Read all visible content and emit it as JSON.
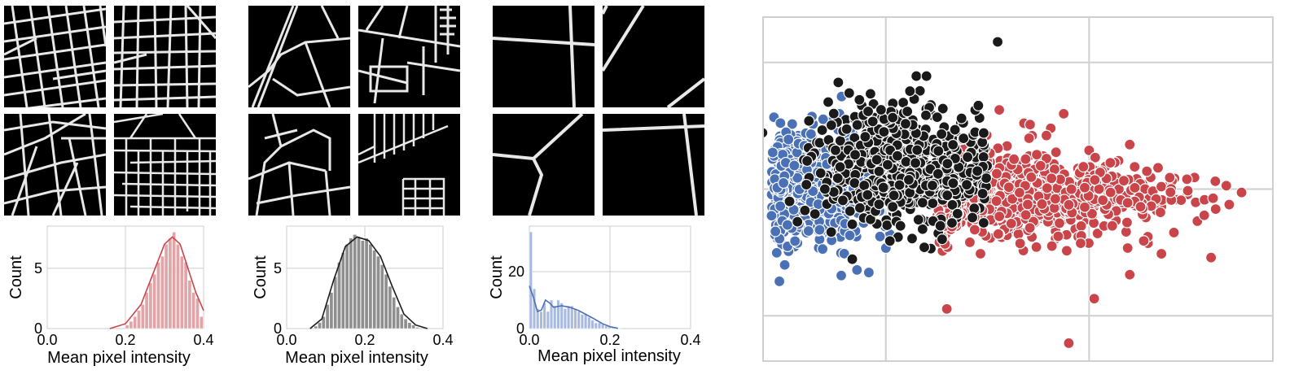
{
  "palette": {
    "red": "#c9454a",
    "red_fill": "#e2a5a7",
    "black": "#1a1a1a",
    "gray_fill": "#8f8f8f",
    "blue": "#4a70b6",
    "blue_fill": "#a9badf",
    "road": "#e8e8e8",
    "grid": "#cccccc"
  },
  "groups": [
    {
      "name": "dense-grid",
      "color_key": "red"
    },
    {
      "name": "medium",
      "color_key": "black"
    },
    {
      "name": "sparse",
      "color_key": "blue"
    }
  ],
  "chart_data": [
    {
      "type": "bar",
      "panel": "histogram-1",
      "xlabel": "Mean pixel intensity",
      "ylabel": "Count",
      "xlim": [
        0.0,
        0.4
      ],
      "ylim": [
        0,
        8.5
      ],
      "xticks": [
        "0.0",
        "0.2",
        "0.4"
      ],
      "yticks": [
        "0",
        "5"
      ],
      "grid": true,
      "bin_width": 0.01,
      "bin_starts": [
        0.2,
        0.21,
        0.22,
        0.23,
        0.24,
        0.25,
        0.26,
        0.27,
        0.28,
        0.29,
        0.3,
        0.31,
        0.32,
        0.33,
        0.34,
        0.35,
        0.36,
        0.37,
        0.38,
        0.39
      ],
      "values": [
        0.3,
        0.6,
        1.0,
        1.5,
        2.0,
        3.0,
        3.8,
        4.5,
        5.5,
        6.0,
        7.0,
        7.5,
        8.0,
        7.0,
        6.0,
        5.5,
        4.0,
        3.0,
        2.5,
        1.0
      ],
      "kde_x": [
        0.16,
        0.2,
        0.24,
        0.27,
        0.3,
        0.32,
        0.34,
        0.36,
        0.38,
        0.4
      ],
      "kde_y": [
        0.0,
        0.4,
        2.0,
        4.5,
        7.0,
        7.6,
        7.0,
        5.0,
        3.0,
        1.5
      ]
    },
    {
      "type": "bar",
      "panel": "histogram-2",
      "xlabel": "Mean pixel intensity",
      "ylabel": "Count",
      "xlim": [
        0.0,
        0.4
      ],
      "ylim": [
        0,
        8.5
      ],
      "xticks": [
        "0.0",
        "0.2",
        "0.4"
      ],
      "yticks": [
        "0",
        "5"
      ],
      "grid": true,
      "bin_width": 0.01,
      "bin_starts": [
        0.07,
        0.08,
        0.09,
        0.1,
        0.11,
        0.12,
        0.13,
        0.14,
        0.15,
        0.16,
        0.17,
        0.18,
        0.19,
        0.2,
        0.21,
        0.22,
        0.23,
        0.24,
        0.25,
        0.26,
        0.27,
        0.28,
        0.29,
        0.3,
        0.31,
        0.32,
        0.33
      ],
      "values": [
        0.2,
        0.5,
        1.0,
        2.0,
        3.0,
        4.3,
        5.5,
        6.3,
        7.0,
        7.5,
        7.8,
        7.6,
        7.3,
        7.5,
        7.0,
        6.5,
        6.0,
        5.3,
        4.5,
        3.5,
        2.6,
        1.8,
        1.2,
        0.8,
        0.5,
        0.3,
        0.1
      ],
      "kde_x": [
        0.06,
        0.09,
        0.12,
        0.15,
        0.18,
        0.21,
        0.24,
        0.27,
        0.3,
        0.33,
        0.36
      ],
      "kde_y": [
        0.0,
        0.8,
        4.0,
        6.8,
        7.6,
        7.3,
        6.0,
        3.5,
        1.2,
        0.3,
        0.0
      ]
    },
    {
      "type": "bar",
      "panel": "histogram-3",
      "xlabel": "Mean pixel intensity",
      "ylabel": "Count",
      "xlim": [
        0.0,
        0.4
      ],
      "ylim": [
        0,
        36
      ],
      "xticks": [
        "0.0",
        "0.2",
        "0.4"
      ],
      "yticks": [
        "0",
        "20"
      ],
      "grid": true,
      "bin_width": 0.0085,
      "bin_starts": [
        0.0,
        0.0085,
        0.017,
        0.0255,
        0.034,
        0.0425,
        0.051,
        0.0595,
        0.068,
        0.0765,
        0.085,
        0.0935,
        0.102,
        0.1105,
        0.119,
        0.1275,
        0.136,
        0.1445,
        0.153,
        0.1615,
        0.17,
        0.1785,
        0.187,
        0.1955,
        0.204,
        0.2125,
        0.221
      ],
      "values": [
        34,
        14,
        7,
        6,
        9,
        6,
        10,
        8,
        10,
        9,
        7,
        8,
        8,
        7,
        6,
        5,
        5,
        4,
        3,
        2,
        2,
        1.5,
        1,
        1,
        0.5,
        0.3,
        0.2
      ],
      "kde_x": [
        0.0,
        0.01,
        0.02,
        0.03,
        0.04,
        0.05,
        0.06,
        0.08,
        0.1,
        0.12,
        0.14,
        0.16,
        0.18,
        0.2,
        0.22
      ],
      "kde_y": [
        15,
        11,
        6,
        6.5,
        10,
        9,
        7.5,
        8,
        7.5,
        6.5,
        5,
        3.5,
        1.8,
        0.7,
        0.1
      ]
    },
    {
      "type": "scatter",
      "panel": "embedding-scatter",
      "xlim": [
        0,
        100
      ],
      "ylim": [
        0,
        100
      ],
      "xticks": [],
      "yticks": [],
      "grid": true,
      "series": [
        {
          "color_key": "blue",
          "clusters": [
            [
              8,
              52,
              6,
              14,
              480
            ],
            [
              14,
              38,
              6,
              9,
              60
            ]
          ]
        },
        {
          "color_key": "black",
          "clusters": [
            [
              28,
              56,
              9,
              16,
              560
            ],
            [
              23,
              71,
              4,
              5,
              45
            ]
          ]
        },
        {
          "color_key": "red",
          "clusters": [
            [
              49,
              48,
              13,
              12,
              640
            ],
            [
              70,
              48,
              8,
              7,
              80
            ]
          ]
        }
      ],
      "outliers": [
        {
          "color_key": "black",
          "x": 46,
          "y": 93
        },
        {
          "color_key": "black",
          "x": 30,
          "y": 83
        },
        {
          "color_key": "black",
          "x": 32,
          "y": 83
        },
        {
          "color_key": "red",
          "x": 59,
          "y": 72
        },
        {
          "color_key": "red",
          "x": 72,
          "y": 63
        },
        {
          "color_key": "red",
          "x": 91,
          "y": 51
        },
        {
          "color_key": "red",
          "x": 94,
          "y": 49
        },
        {
          "color_key": "red",
          "x": 88,
          "y": 30
        },
        {
          "color_key": "red",
          "x": 72,
          "y": 25
        },
        {
          "color_key": "red",
          "x": 65,
          "y": 18
        },
        {
          "color_key": "red",
          "x": 60,
          "y": 5
        },
        {
          "color_key": "red",
          "x": 36,
          "y": 15
        },
        {
          "color_key": "black",
          "x": 12,
          "y": 50
        }
      ]
    }
  ]
}
